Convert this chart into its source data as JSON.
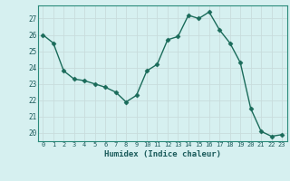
{
  "x": [
    0,
    1,
    2,
    3,
    4,
    5,
    6,
    7,
    8,
    9,
    10,
    11,
    12,
    13,
    14,
    15,
    16,
    17,
    18,
    19,
    20,
    21,
    22,
    23
  ],
  "y": [
    26.0,
    25.5,
    23.8,
    23.3,
    23.2,
    23.0,
    22.8,
    22.5,
    21.9,
    22.3,
    23.8,
    24.2,
    25.7,
    25.9,
    27.2,
    27.0,
    27.4,
    26.3,
    25.5,
    24.3,
    21.5,
    20.1,
    19.8,
    19.9
  ],
  "xlabel": "Humidex (Indice chaleur)",
  "ylim": [
    19.5,
    27.8
  ],
  "xlim": [
    -0.5,
    23.5
  ],
  "yticks": [
    20,
    21,
    22,
    23,
    24,
    25,
    26,
    27
  ],
  "xticks": [
    0,
    1,
    2,
    3,
    4,
    5,
    6,
    7,
    8,
    9,
    10,
    11,
    12,
    13,
    14,
    15,
    16,
    17,
    18,
    19,
    20,
    21,
    22,
    23
  ],
  "line_color": "#1a6b5a",
  "marker_color": "#1a6b5a",
  "bg_color": "#d6f0f0",
  "grid_color": "#c4dede",
  "grid_color_minor": "#e0f4f4"
}
